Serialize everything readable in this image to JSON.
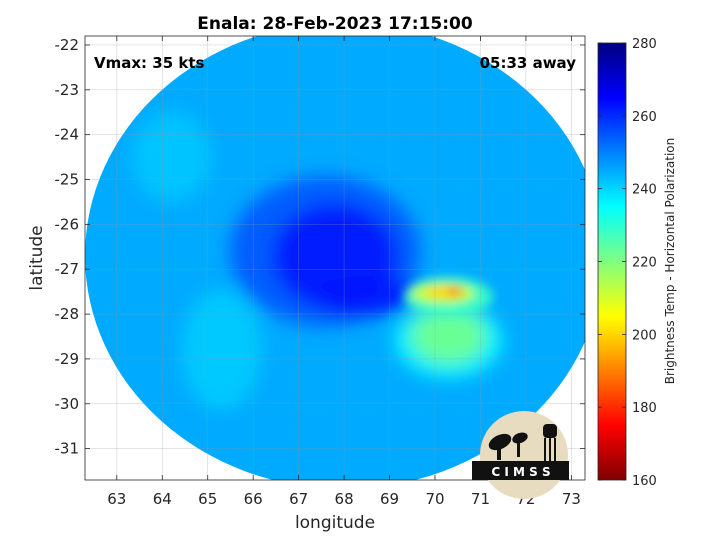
{
  "chart_data": {
    "type": "heatmap",
    "title": "Enala: 28-Feb-2023 17:15:00",
    "xlabel": "longitude",
    "ylabel": "latitude",
    "xlim": [
      62.3,
      73.3
    ],
    "ylim": [
      -31.7,
      -21.8
    ],
    "xticks": [
      63,
      64,
      65,
      66,
      67,
      68,
      69,
      70,
      71,
      72,
      73
    ],
    "yticks": [
      -22,
      -23,
      -24,
      -25,
      -26,
      -27,
      -28,
      -29,
      -30,
      -31
    ],
    "grid": true,
    "annotations": {
      "vmax": "Vmax: 35 kts",
      "away": "05:33 away"
    },
    "colorbar": {
      "label": "Brightness Temp - Horizontal Polarization",
      "min": 160,
      "max": 280,
      "ticks": [
        280,
        260,
        240,
        220,
        200,
        180,
        160
      ],
      "colormap": [
        "#800000",
        "#ff0000",
        "#ff8000",
        "#ffff00",
        "#80ff80",
        "#00ffff",
        "#0080ff",
        "#0000ff",
        "#000080"
      ]
    },
    "swath": {
      "center_lon": 68.0,
      "center_lat": -26.7,
      "lon_radius": 5.7,
      "lat_radius": 5.2,
      "background_temp": 245
    },
    "features": [
      {
        "label": "eye",
        "lon": 67.8,
        "lat": -26.6,
        "temp": 262
      },
      {
        "label": "cold-band",
        "lon": 70.4,
        "lat": -27.5,
        "temp": 190
      },
      {
        "label": "warm-region",
        "lon": 70.3,
        "lat": -28.6,
        "temp": 222
      }
    ]
  },
  "logo": {
    "text": "C I M S S"
  }
}
